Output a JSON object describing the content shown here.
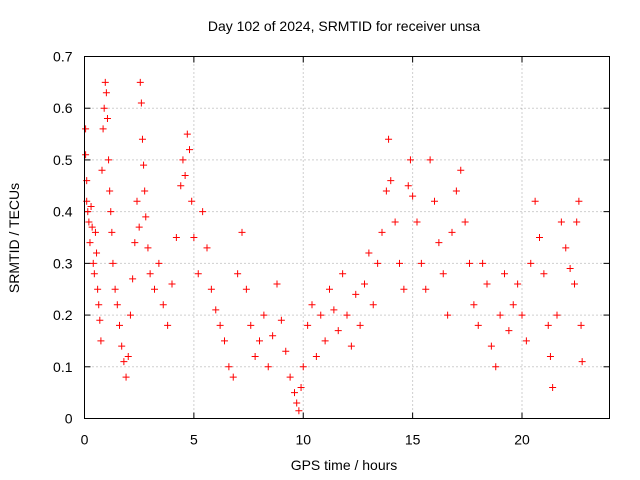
{
  "chart_data": {
    "type": "scatter",
    "title": "Day 102 of 2024, SRMTID for receiver unsa",
    "xlabel": "GPS time / hours",
    "ylabel": "SRMTID / TECUs",
    "xlim": [
      0,
      24
    ],
    "ylim": [
      0,
      0.7
    ],
    "xticks": [
      0,
      5,
      10,
      15,
      20
    ],
    "xtick_labels": [
      "0",
      "5",
      "10",
      "15",
      "20"
    ],
    "yticks": [
      0,
      0.1,
      0.2,
      0.3,
      0.4,
      0.5,
      0.6,
      0.7
    ],
    "ytick_labels": [
      "0",
      "0.1",
      "0.2",
      "0.3",
      "0.4",
      "0.5",
      "0.6",
      "0.7"
    ],
    "grid": true,
    "marker": "plus",
    "color": "#ff0000",
    "series": [
      {
        "name": "SRMTID",
        "points": [
          [
            0.05,
            0.56
          ],
          [
            0.05,
            0.51
          ],
          [
            0.1,
            0.46
          ],
          [
            0.1,
            0.42
          ],
          [
            0.15,
            0.4
          ],
          [
            0.2,
            0.38
          ],
          [
            0.25,
            0.34
          ],
          [
            0.3,
            0.41
          ],
          [
            0.35,
            0.37
          ],
          [
            0.4,
            0.3
          ],
          [
            0.45,
            0.28
          ],
          [
            0.5,
            0.36
          ],
          [
            0.55,
            0.32
          ],
          [
            0.6,
            0.25
          ],
          [
            0.65,
            0.22
          ],
          [
            0.7,
            0.19
          ],
          [
            0.75,
            0.15
          ],
          [
            0.8,
            0.48
          ],
          [
            0.85,
            0.56
          ],
          [
            0.9,
            0.6
          ],
          [
            0.95,
            0.65
          ],
          [
            1.0,
            0.63
          ],
          [
            1.05,
            0.58
          ],
          [
            1.1,
            0.5
          ],
          [
            1.15,
            0.44
          ],
          [
            1.2,
            0.4
          ],
          [
            1.25,
            0.36
          ],
          [
            1.3,
            0.3
          ],
          [
            1.4,
            0.25
          ],
          [
            1.5,
            0.22
          ],
          [
            1.6,
            0.18
          ],
          [
            1.7,
            0.14
          ],
          [
            1.8,
            0.11
          ],
          [
            1.9,
            0.08
          ],
          [
            2.0,
            0.12
          ],
          [
            2.1,
            0.2
          ],
          [
            2.2,
            0.27
          ],
          [
            2.3,
            0.34
          ],
          [
            2.4,
            0.42
          ],
          [
            2.5,
            0.37
          ],
          [
            2.55,
            0.65
          ],
          [
            2.6,
            0.61
          ],
          [
            2.65,
            0.54
          ],
          [
            2.7,
            0.49
          ],
          [
            2.75,
            0.44
          ],
          [
            2.8,
            0.39
          ],
          [
            2.9,
            0.33
          ],
          [
            3.0,
            0.28
          ],
          [
            3.2,
            0.25
          ],
          [
            3.4,
            0.3
          ],
          [
            3.6,
            0.22
          ],
          [
            3.8,
            0.18
          ],
          [
            4.0,
            0.26
          ],
          [
            4.2,
            0.35
          ],
          [
            4.4,
            0.45
          ],
          [
            4.5,
            0.5
          ],
          [
            4.6,
            0.47
          ],
          [
            4.7,
            0.55
          ],
          [
            4.8,
            0.52
          ],
          [
            4.9,
            0.42
          ],
          [
            5.0,
            0.35
          ],
          [
            5.2,
            0.28
          ],
          [
            5.4,
            0.4
          ],
          [
            5.6,
            0.33
          ],
          [
            5.8,
            0.25
          ],
          [
            6.0,
            0.21
          ],
          [
            6.2,
            0.18
          ],
          [
            6.4,
            0.15
          ],
          [
            6.6,
            0.1
          ],
          [
            6.8,
            0.08
          ],
          [
            7.0,
            0.28
          ],
          [
            7.2,
            0.36
          ],
          [
            7.4,
            0.25
          ],
          [
            7.6,
            0.18
          ],
          [
            7.8,
            0.12
          ],
          [
            8.0,
            0.15
          ],
          [
            8.2,
            0.2
          ],
          [
            8.4,
            0.1
          ],
          [
            8.6,
            0.16
          ],
          [
            8.8,
            0.26
          ],
          [
            9.0,
            0.19
          ],
          [
            9.2,
            0.13
          ],
          [
            9.4,
            0.08
          ],
          [
            9.6,
            0.05
          ],
          [
            9.7,
            0.03
          ],
          [
            9.8,
            0.015
          ],
          [
            9.9,
            0.06
          ],
          [
            10.0,
            0.1
          ],
          [
            10.2,
            0.18
          ],
          [
            10.4,
            0.22
          ],
          [
            10.6,
            0.12
          ],
          [
            10.8,
            0.2
          ],
          [
            11.0,
            0.15
          ],
          [
            11.2,
            0.25
          ],
          [
            11.4,
            0.21
          ],
          [
            11.6,
            0.17
          ],
          [
            11.8,
            0.28
          ],
          [
            12.0,
            0.2
          ],
          [
            12.2,
            0.14
          ],
          [
            12.4,
            0.24
          ],
          [
            12.6,
            0.18
          ],
          [
            12.8,
            0.26
          ],
          [
            13.0,
            0.32
          ],
          [
            13.2,
            0.22
          ],
          [
            13.4,
            0.3
          ],
          [
            13.6,
            0.36
          ],
          [
            13.8,
            0.44
          ],
          [
            13.9,
            0.54
          ],
          [
            14.0,
            0.46
          ],
          [
            14.2,
            0.38
          ],
          [
            14.4,
            0.3
          ],
          [
            14.6,
            0.25
          ],
          [
            14.8,
            0.45
          ],
          [
            14.9,
            0.5
          ],
          [
            15.0,
            0.43
          ],
          [
            15.2,
            0.38
          ],
          [
            15.4,
            0.3
          ],
          [
            15.6,
            0.25
          ],
          [
            15.8,
            0.5
          ],
          [
            16.0,
            0.42
          ],
          [
            16.2,
            0.34
          ],
          [
            16.4,
            0.28
          ],
          [
            16.6,
            0.2
          ],
          [
            16.8,
            0.36
          ],
          [
            17.0,
            0.44
          ],
          [
            17.2,
            0.48
          ],
          [
            17.4,
            0.38
          ],
          [
            17.6,
            0.3
          ],
          [
            17.8,
            0.22
          ],
          [
            18.0,
            0.18
          ],
          [
            18.2,
            0.3
          ],
          [
            18.4,
            0.26
          ],
          [
            18.6,
            0.14
          ],
          [
            18.8,
            0.1
          ],
          [
            19.0,
            0.2
          ],
          [
            19.2,
            0.28
          ],
          [
            19.4,
            0.17
          ],
          [
            19.6,
            0.22
          ],
          [
            19.8,
            0.26
          ],
          [
            20.0,
            0.2
          ],
          [
            20.2,
            0.15
          ],
          [
            20.4,
            0.3
          ],
          [
            20.6,
            0.42
          ],
          [
            20.8,
            0.35
          ],
          [
            21.0,
            0.28
          ],
          [
            21.2,
            0.18
          ],
          [
            21.3,
            0.12
          ],
          [
            21.4,
            0.06
          ],
          [
            21.6,
            0.2
          ],
          [
            21.8,
            0.38
          ],
          [
            22.0,
            0.33
          ],
          [
            22.2,
            0.29
          ],
          [
            22.4,
            0.26
          ],
          [
            22.5,
            0.38
          ],
          [
            22.6,
            0.42
          ],
          [
            22.7,
            0.18
          ],
          [
            22.75,
            0.11
          ]
        ]
      }
    ]
  }
}
